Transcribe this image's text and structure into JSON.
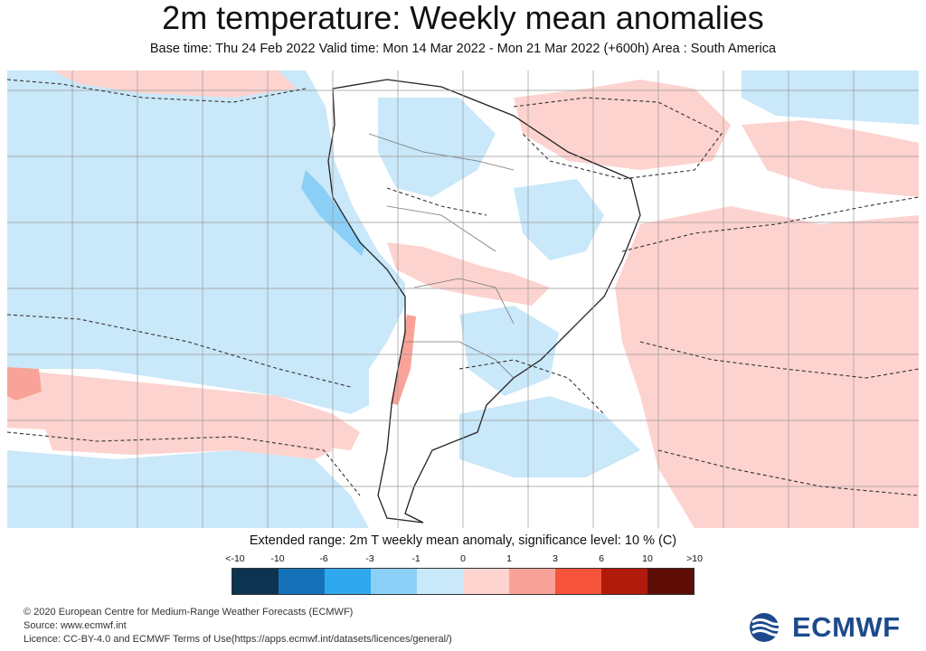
{
  "title": "2m temperature: Weekly mean anomalies",
  "subtitle": "Base time: Thu 24 Feb 2022 Valid time: Mon 14 Mar 2022 - Mon 21 Mar 2022 (+600h) Area : South America",
  "legend": {
    "title": "Extended range: 2m T weekly mean anomaly, significance level: 10 % (C)",
    "ticks": [
      "<-10",
      "-10",
      "-6",
      "-3",
      "-1",
      "0",
      "1",
      "3",
      "6",
      "10",
      ">10"
    ],
    "colors": [
      "#0c3350",
      "#1672b8",
      "#2fa8ee",
      "#8ccff6",
      "#c9e8f9",
      "#fdd3cf",
      "#f9a398",
      "#f5533a",
      "#b01b0c",
      "#5e0d07"
    ]
  },
  "map": {
    "ocean_cold_color": "#c9e8f9",
    "warm_color": "#fdd3cf",
    "land_color": "#ffffff"
  },
  "footer": {
    "line1": "© 2020 European Centre for Medium-Range Weather Forecasts (ECMWF)",
    "line2": "Source: www.ecmwf.int",
    "line3": "Licence: CC-BY-4.0 and ECMWF Terms of Use(https://apps.ecmwf.int/datasets/licences/general/)"
  },
  "logo": {
    "text": "ECMWF",
    "icon": "ecmwf-logo-icon"
  }
}
